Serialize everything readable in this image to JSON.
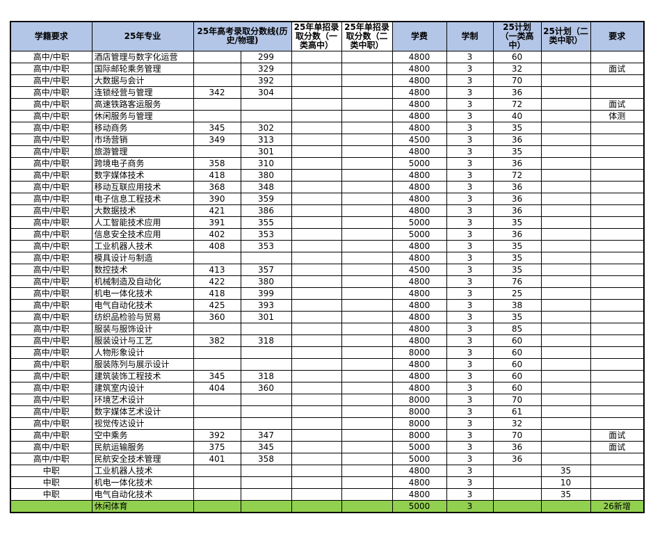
{
  "table": {
    "headers": {
      "student_status": "学籍要求",
      "major": "25年专业",
      "gaokao": "25年高考录取分数线(历史/物理)",
      "danzhao_a": "25年单招录取分数（一类高中）",
      "danzhao_b": "25年单招录取分数（二类中职）",
      "tuition": "学费",
      "duration": "学制",
      "plan_a": "25计划（一类高中）",
      "plan_b": "25计划（二类中职）",
      "requirement": "要求"
    },
    "columns_order": [
      "student_status",
      "major",
      "gaokao_history",
      "gaokao_physics",
      "danzhao_a",
      "danzhao_b",
      "tuition",
      "duration",
      "plan_a",
      "plan_b",
      "requirement"
    ],
    "rows": [
      [
        "高中/中职",
        "酒店管理与数字化运营",
        "",
        "299",
        "",
        "",
        "4800",
        "3",
        "60",
        "",
        ""
      ],
      [
        "高中/中职",
        "国际邮轮乘务管理",
        "",
        "329",
        "",
        "",
        "4800",
        "3",
        "32",
        "",
        "面试"
      ],
      [
        "高中/中职",
        "大数据与会计",
        "",
        "392",
        "",
        "",
        "4800",
        "3",
        "70",
        "",
        ""
      ],
      [
        "高中/中职",
        "连锁经营与管理",
        "342",
        "304",
        "",
        "",
        "4800",
        "3",
        "36",
        "",
        ""
      ],
      [
        "高中/中职",
        "高速铁路客运服务",
        "",
        "",
        "",
        "",
        "4800",
        "3",
        "72",
        "",
        "面试"
      ],
      [
        "高中/中职",
        "休闲服务与管理",
        "",
        "",
        "",
        "",
        "4800",
        "3",
        "40",
        "",
        "体测"
      ],
      [
        "高中/中职",
        "移动商务",
        "345",
        "302",
        "",
        "",
        "4800",
        "3",
        "35",
        "",
        ""
      ],
      [
        "高中/中职",
        "市场营销",
        "349",
        "313",
        "",
        "",
        "4500",
        "3",
        "36",
        "",
        ""
      ],
      [
        "高中/中职",
        "旅游管理",
        "",
        "301",
        "",
        "",
        "4800",
        "3",
        "35",
        "",
        ""
      ],
      [
        "高中/中职",
        "跨境电子商务",
        "358",
        "310",
        "",
        "",
        "5000",
        "3",
        "36",
        "",
        ""
      ],
      [
        "高中/中职",
        "数字媒体技术",
        "418",
        "380",
        "",
        "",
        "4800",
        "3",
        "72",
        "",
        ""
      ],
      [
        "高中/中职",
        "移动互联应用技术",
        "368",
        "348",
        "",
        "",
        "4800",
        "3",
        "36",
        "",
        ""
      ],
      [
        "高中/中职",
        "电子信息工程技术",
        "390",
        "359",
        "",
        "",
        "4800",
        "3",
        "36",
        "",
        ""
      ],
      [
        "高中/中职",
        "大数据技术",
        "421",
        "386",
        "",
        "",
        "4800",
        "3",
        "36",
        "",
        ""
      ],
      [
        "高中/中职",
        "人工智能技术应用",
        "391",
        "355",
        "",
        "",
        "5000",
        "3",
        "35",
        "",
        ""
      ],
      [
        "高中/中职",
        "信息安全技术应用",
        "402",
        "353",
        "",
        "",
        "5000",
        "3",
        "36",
        "",
        ""
      ],
      [
        "高中/中职",
        "工业机器人技术",
        "408",
        "353",
        "",
        "",
        "4800",
        "3",
        "35",
        "",
        ""
      ],
      [
        "高中/中职",
        "模具设计与制造",
        "",
        "",
        "",
        "",
        "4800",
        "3",
        "35",
        "",
        ""
      ],
      [
        "高中/中职",
        "数控技术",
        "413",
        "357",
        "",
        "",
        "4500",
        "3",
        "35",
        "",
        ""
      ],
      [
        "高中/中职",
        "机械制造及自动化",
        "422",
        "380",
        "",
        "",
        "4800",
        "3",
        "76",
        "",
        ""
      ],
      [
        "高中/中职",
        "机电一体化技术",
        "418",
        "399",
        "",
        "",
        "4800",
        "3",
        "25",
        "",
        ""
      ],
      [
        "高中/中职",
        "电气自动化技术",
        "425",
        "393",
        "",
        "",
        "4800",
        "3",
        "38",
        "",
        ""
      ],
      [
        "高中/中职",
        "纺织品检验与贸易",
        "360",
        "301",
        "",
        "",
        "4800",
        "3",
        "35",
        "",
        ""
      ],
      [
        "高中/中职",
        "服装与服饰设计",
        "",
        "",
        "",
        "",
        "4800",
        "3",
        "85",
        "",
        ""
      ],
      [
        "高中/中职",
        "服装设计与工艺",
        "382",
        "318",
        "",
        "",
        "4800",
        "3",
        "60",
        "",
        ""
      ],
      [
        "高中/中职",
        "人物形象设计",
        "",
        "",
        "",
        "",
        "8000",
        "3",
        "60",
        "",
        ""
      ],
      [
        "高中/中职",
        "服装陈列与展示设计",
        "",
        "",
        "",
        "",
        "4800",
        "3",
        "60",
        "",
        ""
      ],
      [
        "高中/中职",
        "建筑装饰工程技术",
        "345",
        "318",
        "",
        "",
        "4800",
        "3",
        "60",
        "",
        ""
      ],
      [
        "高中/中职",
        "建筑室内设计",
        "404",
        "360",
        "",
        "",
        "4800",
        "3",
        "60",
        "",
        ""
      ],
      [
        "高中/中职",
        "环境艺术设计",
        "",
        "",
        "",
        "",
        "8000",
        "3",
        "70",
        "",
        ""
      ],
      [
        "高中/中职",
        "数字媒体艺术设计",
        "",
        "",
        "",
        "",
        "8000",
        "3",
        "61",
        "",
        ""
      ],
      [
        "高中/中职",
        "视觉传达设计",
        "",
        "",
        "",
        "",
        "8000",
        "3",
        "32",
        "",
        ""
      ],
      [
        "高中/中职",
        "空中乘务",
        "392",
        "347",
        "",
        "",
        "8000",
        "3",
        "70",
        "",
        "面试"
      ],
      [
        "高中/中职",
        "民航运输服务",
        "375",
        "345",
        "",
        "",
        "5000",
        "3",
        "36",
        "",
        "面试"
      ],
      [
        "高中/中职",
        "民航安全技术管理",
        "401",
        "358",
        "",
        "",
        "5000",
        "3",
        "36",
        "",
        ""
      ],
      [
        "中职",
        "工业机器人技术",
        "",
        "",
        "",
        "",
        "4800",
        "3",
        "",
        "35",
        ""
      ],
      [
        "中职",
        "机电一体化技术",
        "",
        "",
        "",
        "",
        "4800",
        "3",
        "",
        "10",
        ""
      ],
      [
        "中职",
        "电气自动化技术",
        "",
        "",
        "",
        "",
        "4800",
        "3",
        "",
        "35",
        ""
      ],
      [
        "",
        "休闲体育",
        "",
        "",
        "",
        "",
        "5000",
        "3",
        "",
        "",
        "26新增"
      ]
    ],
    "highlight_row_index": 38
  },
  "colors": {
    "header_bg": "#B4C6E7",
    "header_white_bg": "#FFFFFF",
    "highlight_row_bg": "#92D050",
    "border": "#000000",
    "text": "#000000",
    "page_bg": "#FFFFFF"
  }
}
